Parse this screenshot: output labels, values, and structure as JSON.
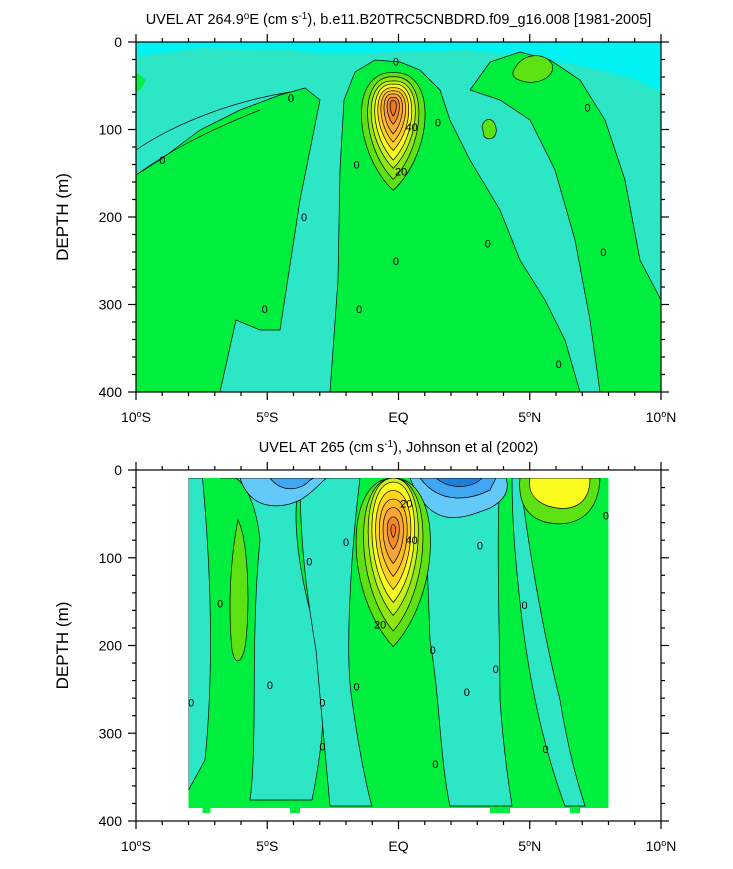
{
  "chart_data": [
    {
      "type": "contour",
      "title": "UVEL AT 264.9°E (cm s⁻¹), b.e11.B20TRC5CNBDRD.f09_g16.008 [1981-2005]",
      "title_main": "UVEL AT 264.9",
      "title_deg": "o",
      "title_mid": "E (cm s",
      "title_sup": "-1",
      "title_end": "), b.e11.B20TRC5CNBDRD.f09_g16.008 [1981-2005]",
      "ylabel": "DEPTH (m)",
      "xlim": [
        -10,
        10
      ],
      "ylim": [
        0,
        400
      ],
      "y_inverted": true,
      "xticks": [
        -10,
        -5,
        0,
        5,
        10
      ],
      "xtick_labels": [
        {
          "num": "10",
          "deg": "o",
          "hemi": "S"
        },
        {
          "num": "5",
          "deg": "o",
          "hemi": "S"
        },
        {
          "num": "EQ",
          "deg": "",
          "hemi": ""
        },
        {
          "num": "5",
          "deg": "o",
          "hemi": "N"
        },
        {
          "num": "10",
          "deg": "o",
          "hemi": "N"
        }
      ],
      "yticks": [
        0,
        100,
        200,
        300,
        400
      ],
      "ytick_labels": [
        "0",
        "100",
        "200",
        "300",
        "400"
      ],
      "contour_labels": [
        {
          "text": "0",
          "x": -9.0,
          "y": 135
        },
        {
          "text": "0",
          "x": -4.1,
          "y": 64
        },
        {
          "text": "0",
          "x": -3.6,
          "y": 200
        },
        {
          "text": "0",
          "x": -5.1,
          "y": 305
        },
        {
          "text": "0",
          "x": -1.6,
          "y": 140
        },
        {
          "text": "0",
          "x": -1.5,
          "y": 305
        },
        {
          "text": "0",
          "x": -0.1,
          "y": 22
        },
        {
          "text": "0",
          "x": -0.1,
          "y": 250
        },
        {
          "text": "0",
          "x": 1.5,
          "y": 92
        },
        {
          "text": "0",
          "x": 3.4,
          "y": 230
        },
        {
          "text": "0",
          "x": 6.1,
          "y": 368
        },
        {
          "text": "0",
          "x": 7.2,
          "y": 75
        },
        {
          "text": "0",
          "x": 7.8,
          "y": 240
        },
        {
          "text": "40",
          "x": 0.5,
          "y": 97
        },
        {
          "text": "20",
          "x": 0.1,
          "y": 148
        }
      ],
      "jet": {
        "core_x": -0.2,
        "core_depth": 72,
        "max_u": 70
      }
    },
    {
      "type": "contour",
      "title": "UVEL AT 265 (cm s⁻¹), Johnson et al (2002)",
      "title_main": "UVEL AT 265 (cm s",
      "title_deg": "",
      "title_mid": "",
      "title_sup": "-1",
      "title_end": "), Johnson et al (2002)",
      "ylabel": "DEPTH (m)",
      "xlim": [
        -10,
        10
      ],
      "ylim": [
        0,
        400
      ],
      "y_inverted": true,
      "data_x_range": [
        -8.0,
        8.0
      ],
      "xticks": [
        -10,
        -5,
        0,
        5,
        10
      ],
      "xtick_labels": [
        {
          "num": "10",
          "deg": "o",
          "hemi": "S"
        },
        {
          "num": "5",
          "deg": "o",
          "hemi": "S"
        },
        {
          "num": "EQ",
          "deg": "",
          "hemi": ""
        },
        {
          "num": "5",
          "deg": "o",
          "hemi": "N"
        },
        {
          "num": "10",
          "deg": "o",
          "hemi": "N"
        }
      ],
      "yticks": [
        0,
        100,
        200,
        300,
        400
      ],
      "ytick_labels": [
        "0",
        "100",
        "200",
        "300",
        "400"
      ],
      "contour_labels": [
        {
          "text": "0",
          "x": -7.9,
          "y": 265
        },
        {
          "text": "0",
          "x": -6.8,
          "y": 152
        },
        {
          "text": "0",
          "x": -4.9,
          "y": 245
        },
        {
          "text": "0",
          "x": -3.4,
          "y": 104
        },
        {
          "text": "0",
          "x": -2.9,
          "y": 265
        },
        {
          "text": "0",
          "x": -2.9,
          "y": 315
        },
        {
          "text": "0",
          "x": -2.0,
          "y": 82
        },
        {
          "text": "0",
          "x": -1.6,
          "y": 247
        },
        {
          "text": "0",
          "x": 1.3,
          "y": 205
        },
        {
          "text": "0",
          "x": 1.4,
          "y": 335
        },
        {
          "text": "0",
          "x": 2.6,
          "y": 253
        },
        {
          "text": "0",
          "x": 3.1,
          "y": 86
        },
        {
          "text": "0",
          "x": 3.7,
          "y": 227
        },
        {
          "text": "0",
          "x": 4.8,
          "y": 154
        },
        {
          "text": "0",
          "x": 5.6,
          "y": 318
        },
        {
          "text": "0",
          "x": 7.9,
          "y": 52
        },
        {
          "text": "40",
          "x": 0.5,
          "y": 80
        },
        {
          "text": "20",
          "x": 0.3,
          "y": 38
        },
        {
          "text": "20",
          "x": -0.7,
          "y": 176
        }
      ],
      "jet": {
        "core_x": -0.2,
        "core_depth": 68,
        "max_u": 70
      }
    }
  ],
  "colors": {
    "c_neg_strong": "#1e7fd9",
    "c_neg_mid": "#3fa6f2",
    "c_neg_weak": "#63c9f8",
    "c_zero_neg": "#00f2f2",
    "c_teal": "#2ce6c6",
    "c_green": "#00ee3e",
    "c_lime": "#5ce212",
    "c_yellow": "#fbfb1d",
    "c_gold": "#ffd21f",
    "c_orange": "#f9a53a",
    "c_dark_orange": "#f28a2a"
  }
}
